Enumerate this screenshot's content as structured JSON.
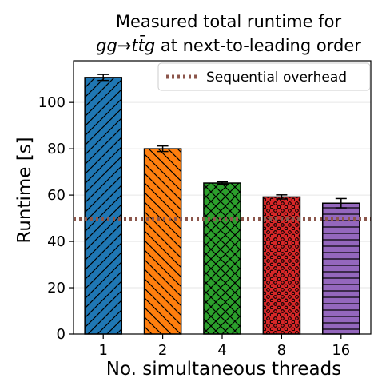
{
  "chart_data": {
    "type": "bar",
    "title_line1": "Measured total runtime for",
    "title_line2_math": "gg→tt̄g",
    "title_line2_text": " at next-to-leading order",
    "xlabel": "No. simultaneous threads",
    "ylabel": "Runtime [s]",
    "categories": [
      "1",
      "2",
      "4",
      "8",
      "16"
    ],
    "values": [
      110.8,
      80.0,
      65.2,
      59.2,
      56.5
    ],
    "errors": [
      1.3,
      1.2,
      0.5,
      0.9,
      2.0
    ],
    "colors": [
      "#1f77b4",
      "#ff7f0e",
      "#2ca02c",
      "#d62728",
      "#9467bd"
    ],
    "hatches": [
      "forward-diagonal",
      "back-diagonal",
      "crosshatch",
      "dots",
      "horizontal"
    ],
    "ylim": [
      0,
      118
    ],
    "yticks": [
      0,
      20,
      40,
      60,
      80,
      100
    ],
    "grid": "horizontal",
    "reference_line": {
      "name": "Sequential overhead",
      "value": 49.5,
      "color": "#8c564b",
      "style": "dotted"
    },
    "legend_placement": "top-right"
  }
}
